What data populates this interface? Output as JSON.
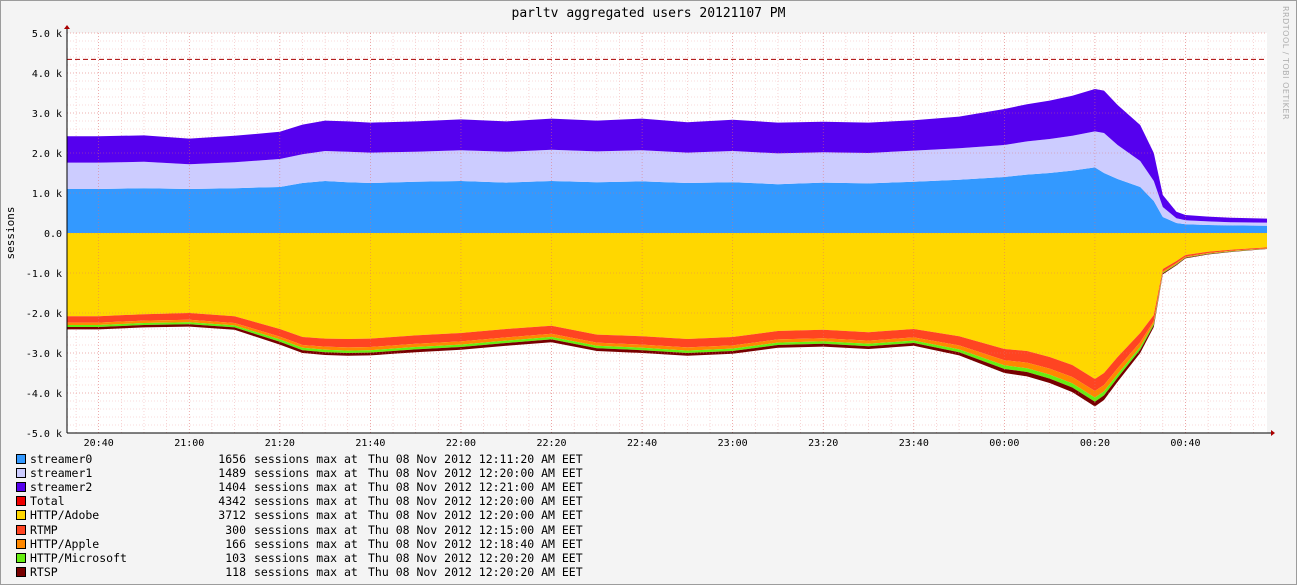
{
  "chart_data": {
    "type": "area",
    "title": "parltv aggregated users 20121107 PM",
    "ylabel": "sessions",
    "watermark": "RRDTOOL / TOBI OETIKER",
    "ylim": [
      -5000,
      5000
    ],
    "y_ticks": [
      "5.0 k",
      "4.0 k",
      "3.0 k",
      "2.0 k",
      "1.0 k",
      "0.0",
      "-1.0 k",
      "-2.0 k",
      "-3.0 k",
      "-4.0 k",
      "-5.0 k"
    ],
    "y_tick_values": [
      5000,
      4000,
      3000,
      2000,
      1000,
      0,
      -1000,
      -2000,
      -3000,
      -4000,
      -5000
    ],
    "x_ticks": [
      "20:40",
      "21:00",
      "21:20",
      "21:40",
      "22:00",
      "22:20",
      "22:40",
      "23:00",
      "23:20",
      "23:40",
      "00:00",
      "00:20",
      "00:40"
    ],
    "x_tick_minutes": [
      0,
      20,
      40,
      60,
      80,
      100,
      120,
      140,
      160,
      180,
      200,
      220,
      240
    ],
    "xlim_minutes": [
      -7,
      258
    ],
    "max_line": 4342,
    "grid": true,
    "legend_position": "bottom-left",
    "time_minutes": [
      -7,
      0,
      10,
      20,
      30,
      40,
      45,
      50,
      55,
      60,
      70,
      80,
      90,
      100,
      110,
      120,
      130,
      140,
      150,
      160,
      170,
      180,
      190,
      200,
      205,
      210,
      215,
      220,
      222,
      225,
      230,
      233,
      235,
      238,
      240,
      245,
      250,
      258
    ],
    "series_positive": [
      {
        "name": "streamer0",
        "color": "#3399ff",
        "max": 1656,
        "values": [
          1100,
          1100,
          1120,
          1100,
          1120,
          1150,
          1250,
          1300,
          1270,
          1250,
          1280,
          1300,
          1260,
          1300,
          1270,
          1290,
          1250,
          1270,
          1220,
          1260,
          1240,
          1280,
          1330,
          1400,
          1460,
          1500,
          1560,
          1640,
          1500,
          1350,
          1150,
          800,
          400,
          250,
          220,
          200,
          190,
          180
        ]
      },
      {
        "name": "streamer1",
        "color": "#ccccff",
        "max": 1489,
        "values": [
          660,
          660,
          660,
          620,
          650,
          700,
          720,
          750,
          760,
          760,
          750,
          770,
          770,
          780,
          770,
          780,
          760,
          780,
          770,
          760,
          760,
          780,
          790,
          800,
          830,
          850,
          870,
          900,
          1000,
          850,
          650,
          500,
          250,
          120,
          100,
          90,
          80,
          80
        ]
      },
      {
        "name": "streamer2",
        "color": "#5500ee",
        "max": 1404,
        "values": [
          660,
          660,
          660,
          640,
          660,
          680,
          740,
          760,
          760,
          750,
          760,
          770,
          760,
          780,
          770,
          790,
          760,
          780,
          770,
          760,
          760,
          760,
          790,
          900,
          930,
          960,
          1000,
          1060,
          1060,
          1000,
          900,
          700,
          300,
          160,
          130,
          120,
          110,
          100
        ]
      }
    ],
    "series_negative": [
      {
        "name": "HTTP/Adobe",
        "color": "#ffd700",
        "max": 3712,
        "values": [
          2080,
          2080,
          2030,
          2000,
          2080,
          2400,
          2600,
          2640,
          2650,
          2640,
          2560,
          2500,
          2400,
          2320,
          2540,
          2580,
          2650,
          2600,
          2450,
          2420,
          2480,
          2400,
          2580,
          2900,
          2950,
          3100,
          3300,
          3650,
          3500,
          3100,
          2500,
          2050,
          900,
          700,
          550,
          470,
          420,
          360
        ]
      },
      {
        "name": "RTMP",
        "color": "#ff4422",
        "max": 300,
        "values": [
          160,
          160,
          160,
          170,
          170,
          190,
          200,
          200,
          210,
          210,
          210,
          210,
          210,
          200,
          200,
          210,
          210,
          210,
          210,
          210,
          210,
          210,
          230,
          280,
          290,
          290,
          300,
          300,
          300,
          280,
          230,
          150,
          60,
          50,
          40,
          30,
          25,
          20
        ]
      },
      {
        "name": "HTTP/Apple",
        "color": "#ff8800",
        "max": 166,
        "values": [
          60,
          60,
          60,
          60,
          60,
          70,
          70,
          80,
          80,
          80,
          80,
          80,
          80,
          80,
          80,
          80,
          80,
          80,
          80,
          80,
          80,
          80,
          100,
          130,
          140,
          150,
          160,
          166,
          160,
          150,
          120,
          60,
          30,
          25,
          20,
          15,
          12,
          10
        ]
      },
      {
        "name": "HTTP/Microsoft",
        "color": "#66ee11",
        "max": 103,
        "values": [
          50,
          50,
          50,
          50,
          50,
          60,
          60,
          60,
          60,
          60,
          60,
          60,
          60,
          60,
          60,
          60,
          60,
          60,
          60,
          60,
          60,
          60,
          70,
          90,
          95,
          100,
          103,
          103,
          100,
          90,
          70,
          40,
          20,
          15,
          10,
          10,
          8,
          5
        ]
      },
      {
        "name": "RTSP",
        "color": "#770000",
        "max": 118,
        "values": [
          60,
          60,
          60,
          60,
          60,
          70,
          70,
          70,
          70,
          70,
          70,
          70,
          70,
          70,
          70,
          70,
          70,
          70,
          70,
          70,
          70,
          70,
          80,
          100,
          110,
          110,
          115,
          118,
          115,
          100,
          80,
          50,
          25,
          20,
          15,
          12,
          10,
          5
        ]
      }
    ],
    "legend": [
      {
        "name": "streamer0",
        "color": "#3399ff",
        "value": "1656",
        "suffix": "sessions max at",
        "time": "Thu 08 Nov 2012 12:11:20 AM EET"
      },
      {
        "name": "streamer1",
        "color": "#ccccff",
        "value": "1489",
        "suffix": "sessions max at",
        "time": "Thu 08 Nov 2012 12:20:00 AM EET"
      },
      {
        "name": "streamer2",
        "color": "#5500ee",
        "value": "1404",
        "suffix": "sessions max at",
        "time": "Thu 08 Nov 2012 12:21:00 AM EET"
      },
      {
        "name": "Total",
        "color": "#ee0000",
        "value": "4342",
        "suffix": "sessions max at",
        "time": "Thu 08 Nov 2012 12:20:00 AM EET"
      },
      {
        "name": "HTTP/Adobe",
        "color": "#ffd700",
        "value": "3712",
        "suffix": "sessions max at",
        "time": "Thu 08 Nov 2012 12:20:00 AM EET"
      },
      {
        "name": "RTMP",
        "color": "#ff4422",
        "value": "300",
        "suffix": "sessions max at",
        "time": "Thu 08 Nov 2012 12:15:00 AM EET"
      },
      {
        "name": "HTTP/Apple",
        "color": "#ff8800",
        "value": "166",
        "suffix": "sessions max at",
        "time": "Thu 08 Nov 2012 12:18:40 AM EET"
      },
      {
        "name": "HTTP/Microsoft",
        "color": "#66ee11",
        "value": "103",
        "suffix": "sessions max at",
        "time": "Thu 08 Nov 2012 12:20:20 AM EET"
      },
      {
        "name": "RTSP",
        "color": "#770000",
        "value": "118",
        "suffix": "sessions max at",
        "time": "Thu 08 Nov 2012 12:20:20 AM EET"
      }
    ]
  }
}
